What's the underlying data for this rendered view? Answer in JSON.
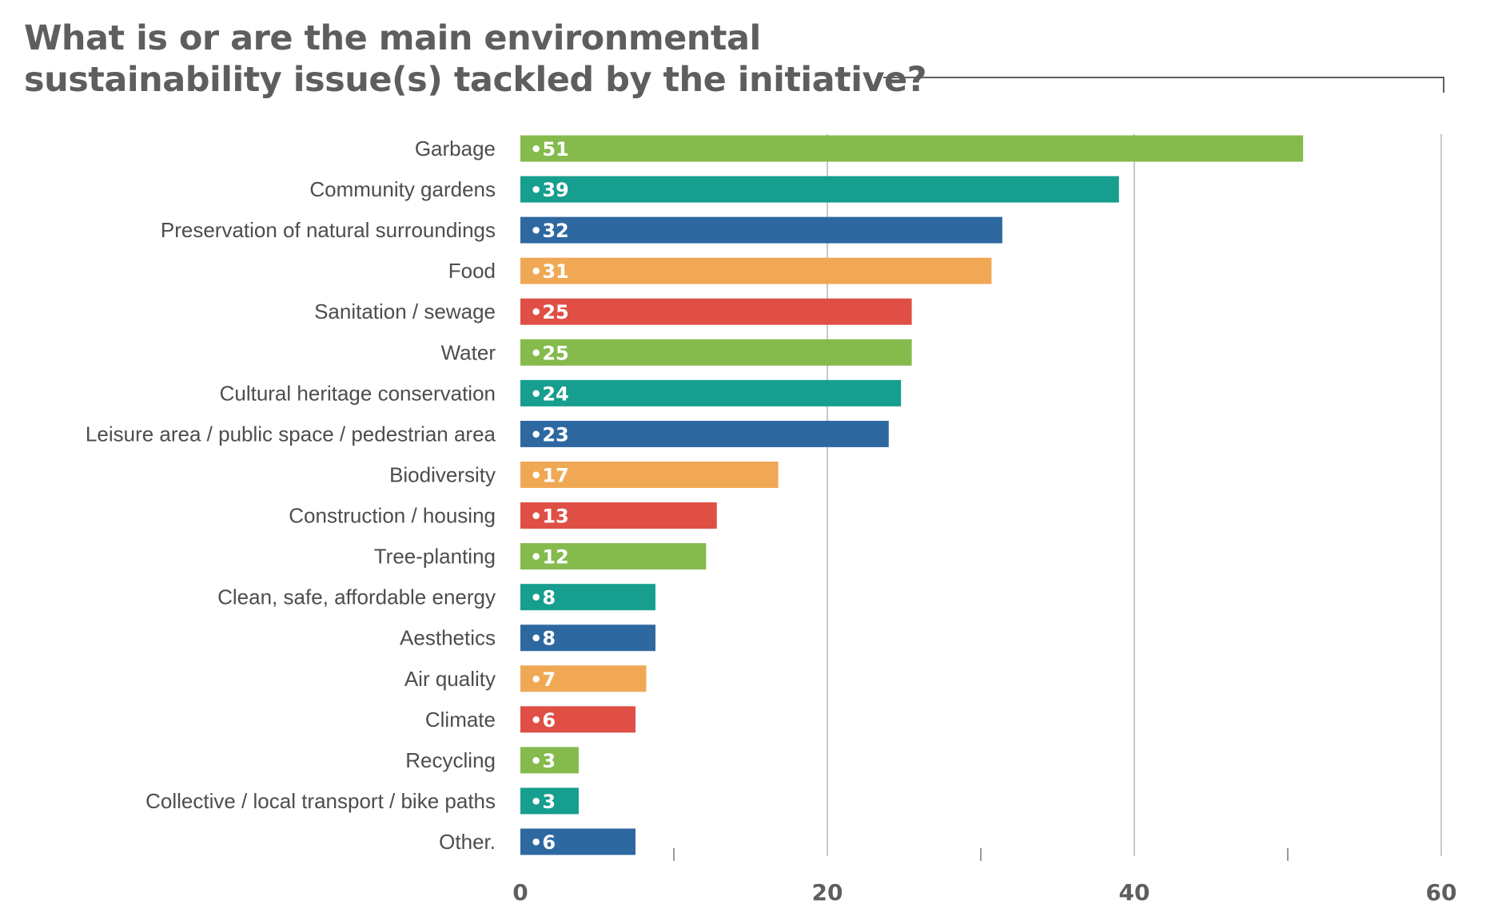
{
  "chart_data": {
    "type": "bar",
    "orientation": "horizontal",
    "title": "What is or are the main environmental sustainability issue(s) tackled by the initiative?",
    "title_lines": [
      "What is or are the main environmental",
      "sustainability issue(s) tackled by the initiative?"
    ],
    "categories": [
      "Garbage",
      "Community gardens",
      "Preservation of natural surroundings",
      "Food",
      "Sanitation / sewage",
      "Water",
      "Cultural heritage conservation",
      "Leisure area / public space / pedestrian area",
      "Biodiversity",
      "Construction / housing",
      "Tree-planting",
      "Clean, safe, affordable energy",
      "Aesthetics",
      "Air quality",
      "Climate",
      "Recycling",
      "Collective / local transport / bike paths",
      "Other."
    ],
    "values": [
      51,
      39,
      32,
      31,
      25,
      25,
      24,
      23,
      17,
      13,
      12,
      8,
      8,
      7,
      6,
      3,
      3,
      6
    ],
    "bar_lengths": [
      51,
      39,
      31.4,
      30.7,
      25.5,
      25.5,
      24.8,
      24,
      16.8,
      12.8,
      12.1,
      8.8,
      8.8,
      8.2,
      7.5,
      3.8,
      3.8,
      7.5
    ],
    "bar_label_prefix": "•",
    "colors": [
      "#84bb4c",
      "#169e8e",
      "#2e68a1",
      "#f0a855",
      "#df4f45",
      "#84bb4c",
      "#169e8e",
      "#2e68a1",
      "#f0a855",
      "#df4f45",
      "#84bb4c",
      "#169e8e",
      "#2e68a1",
      "#f0a855",
      "#df4f45",
      "#84bb4c",
      "#169e8e",
      "#2e68a1"
    ],
    "xlim": [
      0,
      60
    ],
    "xticks": [
      0,
      20,
      40,
      60
    ],
    "minor_ticks": [
      10,
      30,
      50
    ],
    "grid": true,
    "grid_color": "#c8c8c8",
    "text_color": "#5e5e5e"
  }
}
